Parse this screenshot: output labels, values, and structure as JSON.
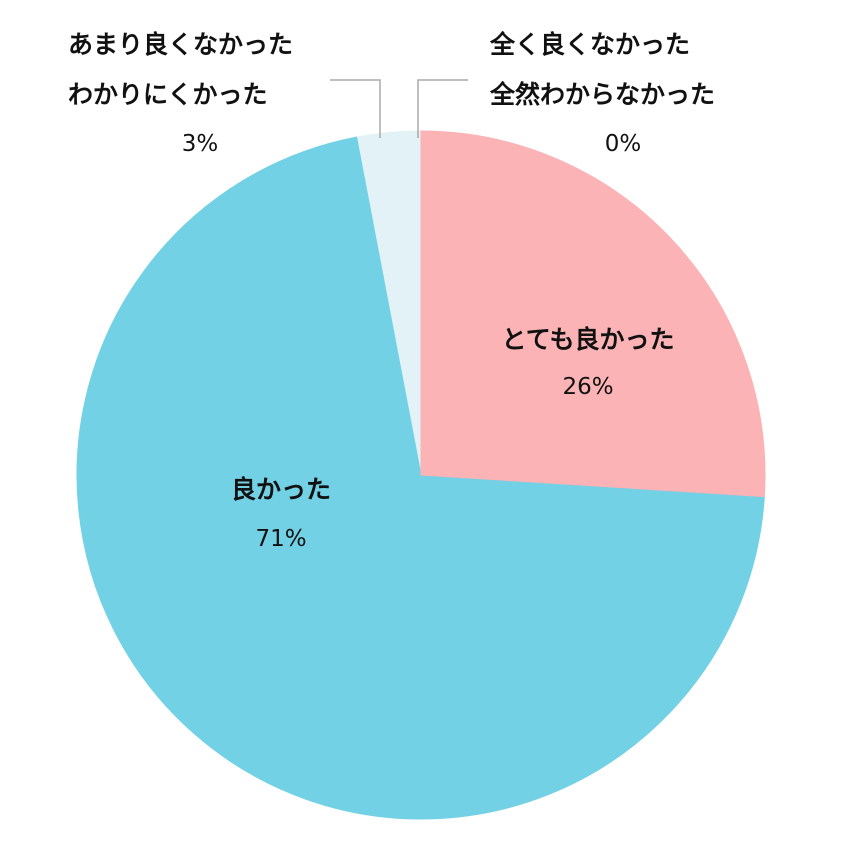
{
  "chart_data": {
    "type": "pie",
    "categories": [
      "とても良かった",
      "良かった",
      "あまり良くなかった\nわかりにくかった",
      "全く良くなかった\n全然わからなかった"
    ],
    "values": [
      26,
      71,
      3,
      0
    ],
    "value_labels": [
      "26%",
      "71%",
      "3%",
      "0%"
    ],
    "colors": [
      "#fbb3b5",
      "#72d1e5",
      "#e2f2f6",
      "#9a9a9a"
    ]
  }
}
